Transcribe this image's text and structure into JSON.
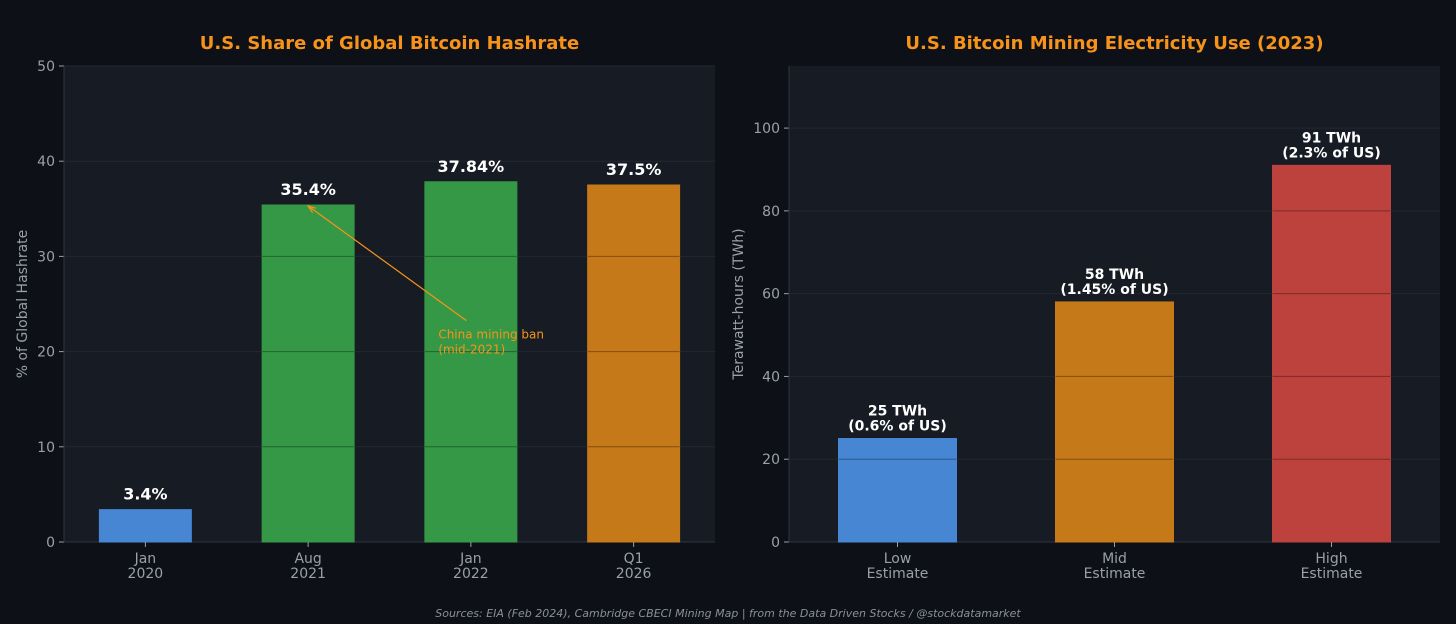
{
  "source": "Sources: EIA (Feb 2024), Cambridge CBECI Mining Map | from the Data Driven Stocks / @stockdatamarket",
  "colors": {
    "title": "#f7931a",
    "blue": "#4a90e2",
    "green": "#38a349",
    "orange": "#d48119",
    "red": "#cc4641",
    "annotation": "#f7931a"
  },
  "chart_data": [
    {
      "type": "bar",
      "title": "U.S. Share of Global Bitcoin Hashrate",
      "xlabel": "",
      "ylabel": "% of Global Hashrate",
      "ylim": [
        0,
        50
      ],
      "yticks": [
        0,
        10,
        20,
        30,
        40,
        50
      ],
      "categories": [
        [
          "Jan",
          "2020"
        ],
        [
          "Aug",
          "2021"
        ],
        [
          "Jan",
          "2022"
        ],
        [
          "Q1",
          "2026"
        ]
      ],
      "values": [
        3.4,
        35.4,
        37.84,
        37.5
      ],
      "value_labels": [
        "3.4%",
        "35.4%",
        "37.84%",
        "37.5%"
      ],
      "bar_colors": [
        "#4a90e2",
        "#38a349",
        "#38a349",
        "#d48119"
      ],
      "grid": true,
      "annotation": {
        "text": [
          "China mining ban",
          "(mid-2021)"
        ],
        "arrow_target": {
          "category_index": 1,
          "value": 35.4
        },
        "text_anchor": {
          "category_index": 1.8,
          "value": 20.0
        }
      }
    },
    {
      "type": "bar",
      "title": "U.S. Bitcoin Mining Electricity Use (2023)",
      "xlabel": "",
      "ylabel": "Terawatt-hours (TWh)",
      "ylim": [
        0,
        115
      ],
      "yticks": [
        0,
        20,
        40,
        60,
        80,
        100
      ],
      "categories": [
        [
          "Low",
          "Estimate"
        ],
        [
          "Mid",
          "Estimate"
        ],
        [
          "High",
          "Estimate"
        ]
      ],
      "values": [
        25,
        58,
        91
      ],
      "value_labels": [
        [
          "25 TWh",
          "(0.6% of US)"
        ],
        [
          "58 TWh",
          "(1.45% of US)"
        ],
        [
          "91 TWh",
          "(2.3% of US)"
        ]
      ],
      "bar_colors": [
        "#4a90e2",
        "#d48119",
        "#cc4641"
      ],
      "grid": true
    }
  ]
}
